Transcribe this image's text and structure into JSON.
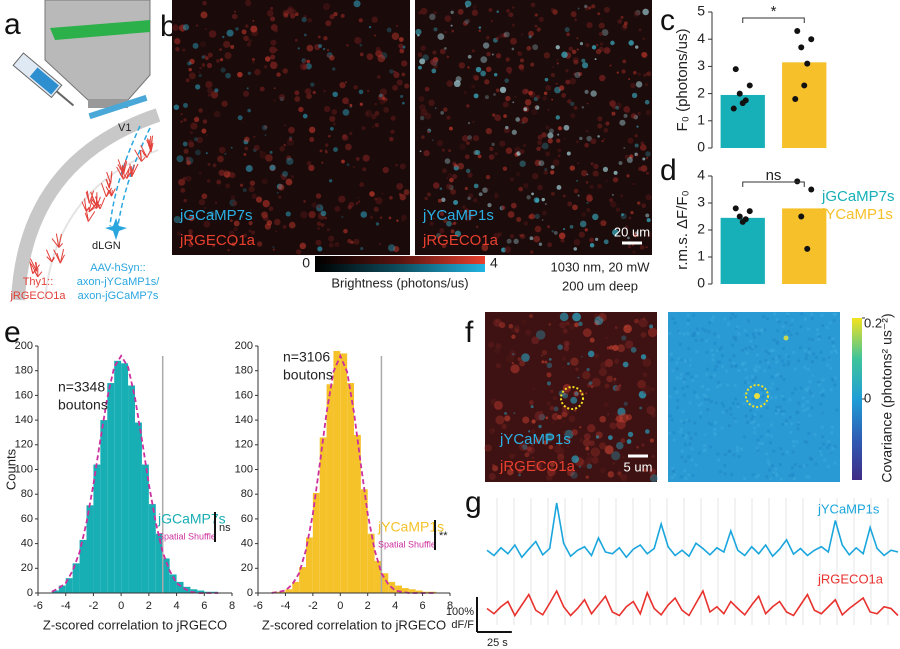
{
  "panel_labels": [
    "a",
    "b",
    "c",
    "d",
    "e",
    "f",
    "g"
  ],
  "panel_a": {
    "v1": "V1",
    "dlgn": "dLGN",
    "mouse_line": [
      "Thy1::",
      "jRGECO1a"
    ],
    "virus": [
      "AAV-hSyn::",
      "axon-jYCaMP1s/",
      "axon-jGCaMP7s"
    ]
  },
  "panel_b": {
    "images": [
      {
        "labels": [
          "jGCaMP7s",
          "jRGECO1a"
        ]
      },
      {
        "labels": [
          "jYCaMP1s",
          "jRGECO1a"
        ]
      }
    ],
    "scale_bar": "20 um",
    "colorbar": {
      "clim": [
        0,
        4
      ],
      "ticks": [
        0,
        4
      ],
      "label": "Brightness (photons/us)"
    },
    "imaging": [
      "1030 nm, 20 mW",
      "200 um deep"
    ]
  },
  "panel_f": {
    "labels": [
      "jYCaMP1s",
      "jRGECO1a"
    ],
    "scale_bar": "5 um",
    "colorbar": {
      "clim": [
        -0.2,
        0.2
      ],
      "ticks": [
        0.2,
        0
      ],
      "label": "Covariance (photons² us⁻²)"
    }
  },
  "chart_data": [
    {
      "type": "bar",
      "ylabel": "F₀ (photons/us)",
      "values": [
        1.95,
        3.15
      ],
      "colors": [
        "#17b0b8",
        "#f5c02a"
      ],
      "points": [
        [
          2.9,
          2.3,
          2.0,
          1.75,
          1.65,
          1.45
        ],
        [
          4.3,
          4.0,
          3.7,
          3.1,
          2.3,
          1.8
        ]
      ],
      "significance": "*",
      "ylim": [
        0,
        5
      ],
      "yticks": [
        0,
        1,
        2,
        3,
        4,
        5
      ]
    },
    {
      "type": "bar",
      "ylabel": "r.m.s. ΔF/F₀",
      "categories": [
        "jGCaMP7s",
        "jYCaMP1s"
      ],
      "values": [
        2.45,
        2.8
      ],
      "colors": [
        "#17b0b8",
        "#f5c02a"
      ],
      "points": [
        [
          2.8,
          2.7,
          2.5,
          2.4,
          2.3
        ],
        [
          3.8,
          3.5,
          2.5,
          1.3
        ]
      ],
      "significance": "ns",
      "ylim": [
        0,
        4
      ],
      "yticks": [
        0,
        1,
        2,
        3,
        4
      ]
    },
    {
      "type": "histogram",
      "name": "jGCaMP7s",
      "color": "#17aeb4",
      "ylabel": "Counts",
      "xlabel": "Z-scored correlation to jRGECO",
      "annotations": [
        "n=3348",
        "boutons"
      ],
      "significance": "ns",
      "threshold": 3,
      "bins": [
        -5,
        -4.5,
        -4,
        -3.5,
        -3,
        -2.5,
        -2,
        -1.5,
        -1,
        -0.5,
        0,
        0.5,
        1,
        1.5,
        2,
        2.5,
        3,
        3.5,
        4,
        4.5,
        5,
        5.5,
        6,
        6.5,
        7
      ],
      "values": [
        2,
        6,
        12,
        24,
        43,
        71,
        104,
        140,
        170,
        188,
        186,
        168,
        138,
        104,
        72,
        48,
        28,
        15,
        9,
        5,
        3,
        2,
        1,
        1
      ],
      "shuffle": {
        "name": "Spatial Shuffle",
        "color": "#cc2f9e",
        "x": [
          -5,
          -4.5,
          -4,
          -3.5,
          -3,
          -2.5,
          -2,
          -1.5,
          -1,
          -0.5,
          0,
          0.5,
          1,
          1.5,
          2,
          2.5,
          3,
          3.5,
          4,
          4.5,
          5,
          5.5,
          6,
          6.5,
          7
        ],
        "values": [
          1,
          4,
          8,
          18,
          33,
          57,
          88,
          124,
          158,
          183,
          192,
          183,
          158,
          124,
          88,
          57,
          33,
          18,
          8,
          4,
          1,
          0,
          0,
          0,
          0
        ]
      },
      "xlim": [
        -6,
        8
      ],
      "xticks": [
        -6,
        -4,
        -2,
        0,
        2,
        4,
        6,
        8
      ],
      "ylim": [
        0,
        200
      ],
      "yticks": [
        0,
        20,
        40,
        60,
        80,
        100,
        120,
        140,
        160,
        180,
        200
      ]
    },
    {
      "type": "histogram",
      "name": "jYCaMP1s",
      "color": "#f5c22a",
      "xlabel": "Z-scored correlation to jRGECO",
      "annotations": [
        "n=3106",
        "boutons"
      ],
      "significance": "**",
      "threshold": 3,
      "bins": [
        -5,
        -4.5,
        -4,
        -3.5,
        -3,
        -2.5,
        -2,
        -1.5,
        -1,
        -0.5,
        0,
        0.5,
        1,
        1.5,
        2,
        2.5,
        3,
        3.5,
        4,
        4.5,
        5,
        5.5,
        6,
        6.5,
        7
      ],
      "values": [
        1,
        1,
        3,
        9,
        21,
        45,
        81,
        126,
        169,
        196,
        194,
        170,
        128,
        84,
        48,
        26,
        16,
        9,
        6,
        4,
        3,
        2,
        1,
        1
      ],
      "shuffle": {
        "name": "Spatial Shuffle",
        "color": "#cc2f9e",
        "x": [
          -5,
          -4.5,
          -4,
          -3.5,
          -3,
          -2.5,
          -2,
          -1.5,
          -1,
          -0.5,
          0,
          0.5,
          1,
          1.5,
          2,
          2.5,
          3,
          3.5,
          4,
          4.5,
          5,
          5.5,
          6,
          6.5,
          7
        ],
        "values": [
          0,
          1,
          2,
          7,
          16,
          35,
          64,
          104,
          146,
          179,
          192,
          179,
          146,
          104,
          64,
          35,
          16,
          7,
          2,
          1,
          0,
          0,
          0,
          0,
          0
        ]
      },
      "xlim": [
        -6,
        8
      ],
      "xticks": [
        -6,
        -4,
        -2,
        0,
        2,
        4,
        6,
        8
      ],
      "ylim": [
        0,
        200
      ],
      "yticks": [
        0,
        20,
        40,
        60,
        80,
        100,
        120,
        140,
        160,
        180,
        200
      ]
    },
    {
      "type": "line",
      "x": [
        0,
        5,
        10,
        15,
        20,
        25,
        30,
        35,
        40,
        45,
        50,
        55,
        60,
        65,
        70,
        75,
        80,
        85,
        90,
        95,
        100,
        105,
        110,
        115,
        120,
        125,
        130,
        135,
        140,
        145,
        150,
        155,
        160,
        165,
        170,
        175,
        180,
        185,
        190,
        195,
        200,
        205,
        210,
        215,
        220,
        225,
        230,
        235,
        240,
        245,
        250,
        255,
        260,
        265,
        270,
        275,
        280,
        285,
        290,
        295
      ],
      "series": [
        {
          "name": "jYCaMP1s",
          "color": "#1aa6dc",
          "values": [
            5,
            -10,
            12,
            -5,
            20,
            -15,
            8,
            30,
            -8,
            10,
            140,
            25,
            -12,
            5,
            15,
            -10,
            40,
            0,
            -5,
            12,
            -15,
            8,
            20,
            -5,
            10,
            80,
            15,
            -10,
            5,
            -12,
            25,
            10,
            -8,
            12,
            0,
            60,
            5,
            -10,
            15,
            -5,
            20,
            -12,
            8,
            35,
            -6,
            10,
            -10,
            5,
            15,
            0,
            90,
            20,
            -8,
            12,
            -5,
            70,
            10,
            -10,
            5,
            0
          ]
        },
        {
          "name": "jRGECO1a",
          "color": "#e8322e",
          "values": [
            10,
            -5,
            15,
            30,
            -10,
            20,
            50,
            5,
            -8,
            25,
            60,
            15,
            -10,
            10,
            35,
            -5,
            20,
            45,
            0,
            -10,
            15,
            30,
            -5,
            55,
            10,
            -8,
            20,
            40,
            5,
            -10,
            25,
            60,
            0,
            15,
            -5,
            30,
            10,
            -8,
            20,
            45,
            -5,
            15,
            30,
            0,
            -10,
            20,
            50,
            5,
            -5,
            15,
            35,
            -8,
            10,
            25,
            40,
            0,
            -5,
            15,
            10,
            -10
          ]
        }
      ],
      "scale_bar": {
        "x": {
          "value": 25,
          "label": "25 s"
        },
        "y": {
          "value": 100,
          "label": "100%"
        },
        "y_unit": "dF/F"
      }
    }
  ]
}
